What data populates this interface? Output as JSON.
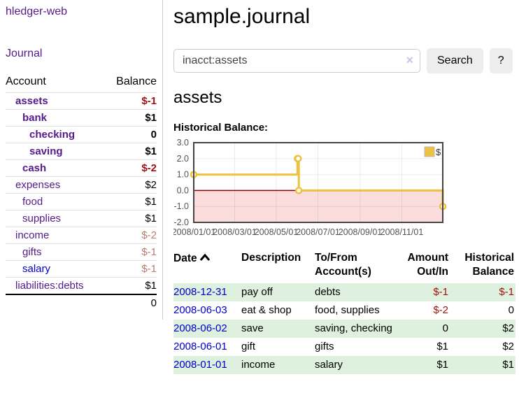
{
  "app": {
    "title": "hledger-web"
  },
  "sidebar": {
    "journal_link": "Journal",
    "accounts": {
      "headers": {
        "account": "Account",
        "balance": "Balance"
      },
      "rows": [
        {
          "name": "assets",
          "balance": "$-1"
        },
        {
          "name": "bank",
          "balance": "$1"
        },
        {
          "name": "checking",
          "balance": "0"
        },
        {
          "name": "saving",
          "balance": "$1"
        },
        {
          "name": "cash",
          "balance": "$-2"
        },
        {
          "name": "expenses",
          "balance": "$2"
        },
        {
          "name": "food",
          "balance": "$1"
        },
        {
          "name": "supplies",
          "balance": "$1"
        },
        {
          "name": "income",
          "balance": "$-2"
        },
        {
          "name": "gifts",
          "balance": "$-1"
        },
        {
          "name": "salary",
          "balance": "$-1"
        },
        {
          "name": "liabilities:debts",
          "balance": "$1"
        }
      ],
      "total": "0"
    }
  },
  "header": {
    "title": "sample.journal"
  },
  "search": {
    "value": "inacct:assets",
    "clear_label": "×",
    "button_label": "Search",
    "help_label": "?"
  },
  "account_page": {
    "title": "assets",
    "chart_heading": "Historical Balance:"
  },
  "chart_data": {
    "type": "line",
    "style": "step",
    "title": "Historical Balance",
    "legend_label": "$",
    "legend_position": "top-right",
    "grid": true,
    "ylim": [
      -2,
      3
    ],
    "y_ticks": [
      3.0,
      2.0,
      1.0,
      0.0,
      -1.0,
      -2.0
    ],
    "x_ticks": [
      "2008/01/01",
      "2008/03/01",
      "2008/05/01",
      "2008/07/01",
      "2008/09/01",
      "2008/11/01"
    ],
    "x_tick_days": [
      0,
      60,
      121,
      182,
      244,
      305
    ],
    "total_days": 365,
    "points": [
      {
        "date": "2008-01-01",
        "day": 0,
        "value": 1
      },
      {
        "date": "2008-06-01",
        "day": 152,
        "value": 2
      },
      {
        "date": "2008-06-02",
        "day": 153,
        "value": 2
      },
      {
        "date": "2008-06-03",
        "day": 154,
        "value": 0
      },
      {
        "date": "2008-12-31",
        "day": 365,
        "value": -1
      }
    ],
    "colors": {
      "series": "#edc240",
      "negative_region": "#fcdddd",
      "zero_line": "#8b0000",
      "grid": "rgba(0,0,0,0.08)",
      "border": "#444444",
      "tick_text": "#545454"
    }
  },
  "transactions": {
    "headers": {
      "date": "Date",
      "description": "Description",
      "accounts": "To/From Account(s)",
      "amount": "Amount Out/In",
      "balance": "Historical Balance"
    },
    "rows": [
      {
        "date": "2008-12-31",
        "description": "pay off",
        "accounts": "debts",
        "amount": "$-1",
        "balance": "$-1"
      },
      {
        "date": "2008-06-03",
        "description": "eat & shop",
        "accounts": "food, supplies",
        "amount": "$-2",
        "balance": "0"
      },
      {
        "date": "2008-06-02",
        "description": "save",
        "accounts": "saving, checking",
        "amount": "0",
        "balance": "$2"
      },
      {
        "date": "2008-06-01",
        "description": "gift",
        "accounts": "gifts",
        "amount": "$1",
        "balance": "$2"
      },
      {
        "date": "2008-01-01",
        "description": "income",
        "accounts": "salary",
        "amount": "$1",
        "balance": "$1"
      }
    ]
  }
}
